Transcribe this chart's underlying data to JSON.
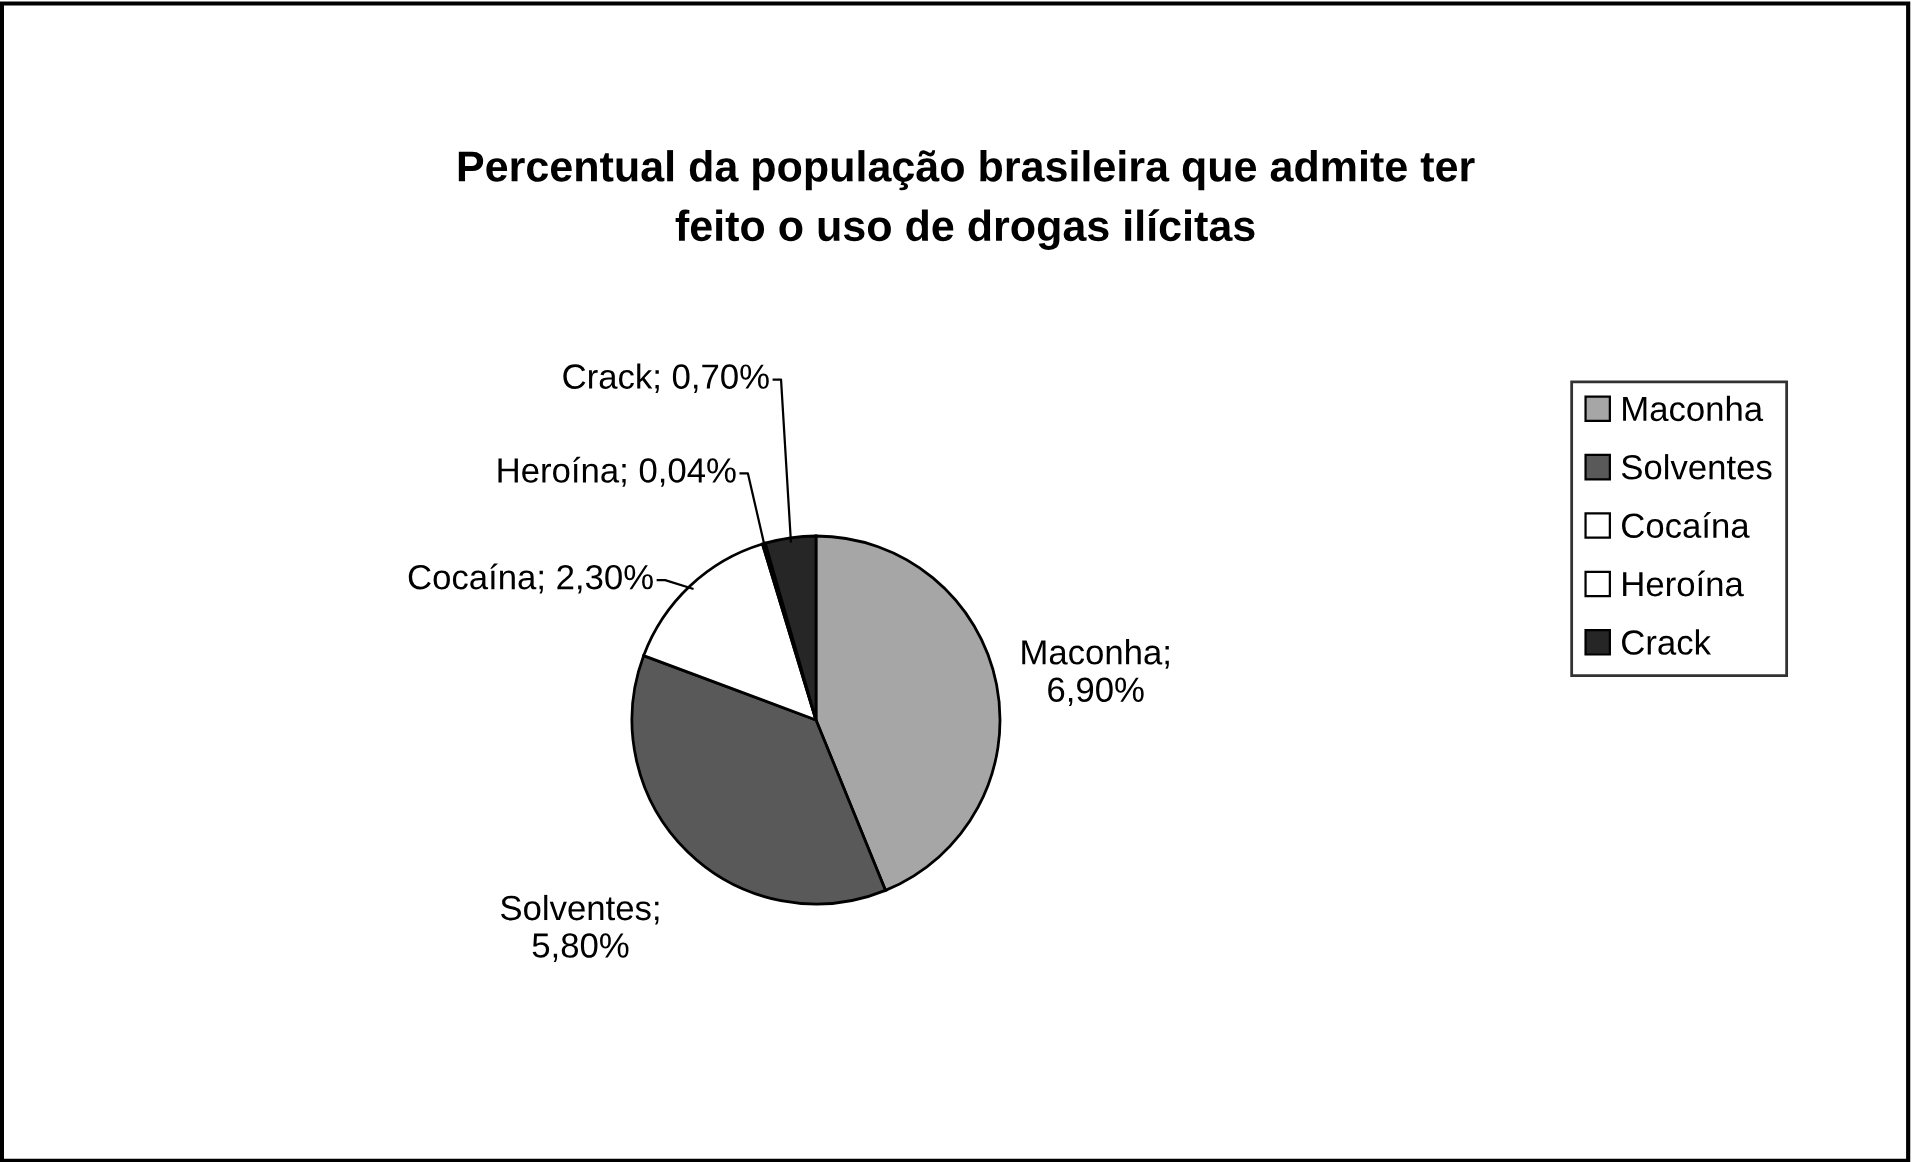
{
  "chart_data": {
    "type": "pie",
    "title": "Percentual da população brasileira que admite ter\nfeito o uso de drogas ilícitas",
    "categories": [
      "Maconha",
      "Solventes",
      "Cocaína",
      "Heroína",
      "Crack"
    ],
    "values": [
      6.9,
      5.8,
      2.3,
      0.04,
      0.7
    ],
    "value_labels": [
      "Maconha;\n6,90%",
      "Solventes;\n5,80%",
      "Cocaína; 2,30%",
      "Heroína; 0,04%",
      "Crack; 0,70%"
    ],
    "colors": [
      "#a6a6a6",
      "#595959",
      "#ffffff",
      "#ffffff",
      "#262626"
    ],
    "legend": "right"
  }
}
